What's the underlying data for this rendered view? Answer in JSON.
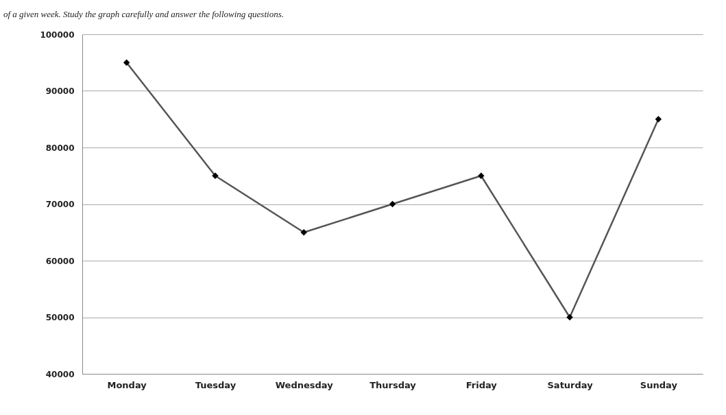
{
  "chart_data": {
    "type": "line",
    "subtitle": "of a given week. Study the graph carefully and answer the following questions.",
    "categories": [
      "Monday",
      "Tuesday",
      "Wednesday",
      "Thursday",
      "Friday",
      "Saturday",
      "Sunday"
    ],
    "series": [
      {
        "color": "#555555",
        "values": [
          95000,
          75000,
          65000,
          70000,
          75000,
          50000,
          85000
        ]
      }
    ],
    "ylim": [
      40000,
      100000
    ],
    "yticks": [
      40000,
      50000,
      60000,
      70000,
      80000,
      90000,
      100000
    ],
    "grid": "y",
    "legend": false,
    "marker": "diamond",
    "line_style": "solid"
  }
}
